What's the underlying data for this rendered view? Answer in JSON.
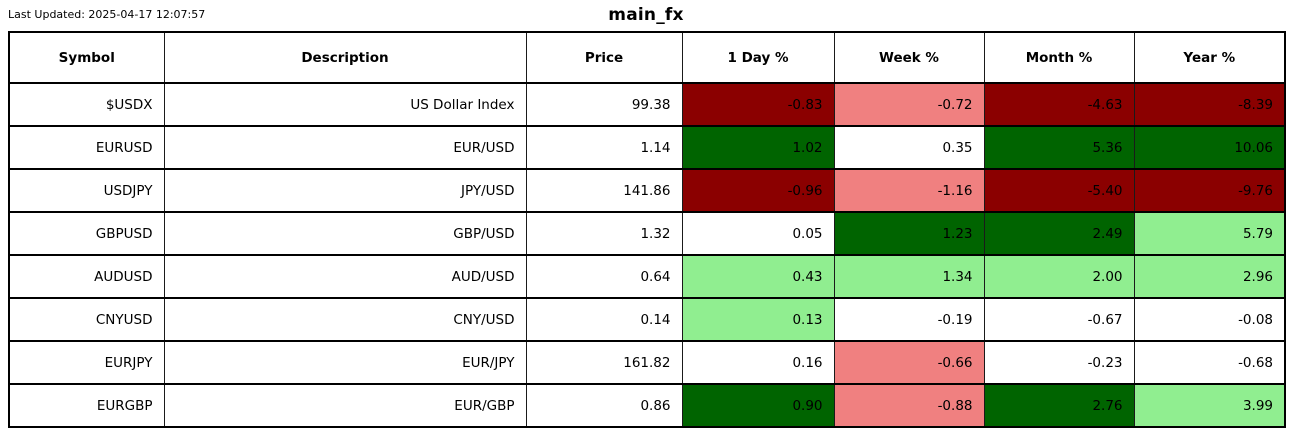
{
  "header": {
    "last_updated": "Last Updated: 2025-04-17 12:07:57",
    "title": "main_fx"
  },
  "palette": {
    "strong_negative": "#8B0000",
    "mild_negative": "#F08080",
    "strong_positive": "#006400",
    "mild_positive": "#90EE90",
    "neutral": "#FFFFFF"
  },
  "chart_data": {
    "type": "table",
    "title": "main_fx",
    "columns": [
      "Symbol",
      "Description",
      "Price",
      "1 Day %",
      "Week %",
      "Month %",
      "Year %"
    ],
    "rows": [
      {
        "symbol": "$USDX",
        "description": "US Dollar Index",
        "price": "99.38",
        "day": {
          "v": "-0.83",
          "bg": "#8B0000"
        },
        "week": {
          "v": "-0.72",
          "bg": "#F08080"
        },
        "month": {
          "v": "-4.63",
          "bg": "#8B0000"
        },
        "year": {
          "v": "-8.39",
          "bg": "#8B0000"
        }
      },
      {
        "symbol": "EURUSD",
        "description": "EUR/USD",
        "price": "1.14",
        "day": {
          "v": "1.02",
          "bg": "#006400"
        },
        "week": {
          "v": "0.35",
          "bg": "#FFFFFF"
        },
        "month": {
          "v": "5.36",
          "bg": "#006400"
        },
        "year": {
          "v": "10.06",
          "bg": "#006400"
        }
      },
      {
        "symbol": "USDJPY",
        "description": "JPY/USD",
        "price": "141.86",
        "day": {
          "v": "-0.96",
          "bg": "#8B0000"
        },
        "week": {
          "v": "-1.16",
          "bg": "#F08080"
        },
        "month": {
          "v": "-5.40",
          "bg": "#8B0000"
        },
        "year": {
          "v": "-9.76",
          "bg": "#8B0000"
        }
      },
      {
        "symbol": "GBPUSD",
        "description": "GBP/USD",
        "price": "1.32",
        "day": {
          "v": "0.05",
          "bg": "#FFFFFF"
        },
        "week": {
          "v": "1.23",
          "bg": "#006400"
        },
        "month": {
          "v": "2.49",
          "bg": "#006400"
        },
        "year": {
          "v": "5.79",
          "bg": "#90EE90"
        }
      },
      {
        "symbol": "AUDUSD",
        "description": "AUD/USD",
        "price": "0.64",
        "day": {
          "v": "0.43",
          "bg": "#90EE90"
        },
        "week": {
          "v": "1.34",
          "bg": "#90EE90"
        },
        "month": {
          "v": "2.00",
          "bg": "#90EE90"
        },
        "year": {
          "v": "2.96",
          "bg": "#90EE90"
        }
      },
      {
        "symbol": "CNYUSD",
        "description": "CNY/USD",
        "price": "0.14",
        "day": {
          "v": "0.13",
          "bg": "#90EE90"
        },
        "week": {
          "v": "-0.19",
          "bg": "#FFFFFF"
        },
        "month": {
          "v": "-0.67",
          "bg": "#FFFFFF"
        },
        "year": {
          "v": "-0.08",
          "bg": "#FFFFFF"
        }
      },
      {
        "symbol": "EURJPY",
        "description": "EUR/JPY",
        "price": "161.82",
        "day": {
          "v": "0.16",
          "bg": "#FFFFFF"
        },
        "week": {
          "v": "-0.66",
          "bg": "#F08080"
        },
        "month": {
          "v": "-0.23",
          "bg": "#FFFFFF"
        },
        "year": {
          "v": "-0.68",
          "bg": "#FFFFFF"
        }
      },
      {
        "symbol": "EURGBP",
        "description": "EUR/GBP",
        "price": "0.86",
        "day": {
          "v": "0.90",
          "bg": "#006400"
        },
        "week": {
          "v": "-0.88",
          "bg": "#F08080"
        },
        "month": {
          "v": "2.76",
          "bg": "#006400"
        },
        "year": {
          "v": "3.99",
          "bg": "#90EE90"
        }
      }
    ]
  }
}
